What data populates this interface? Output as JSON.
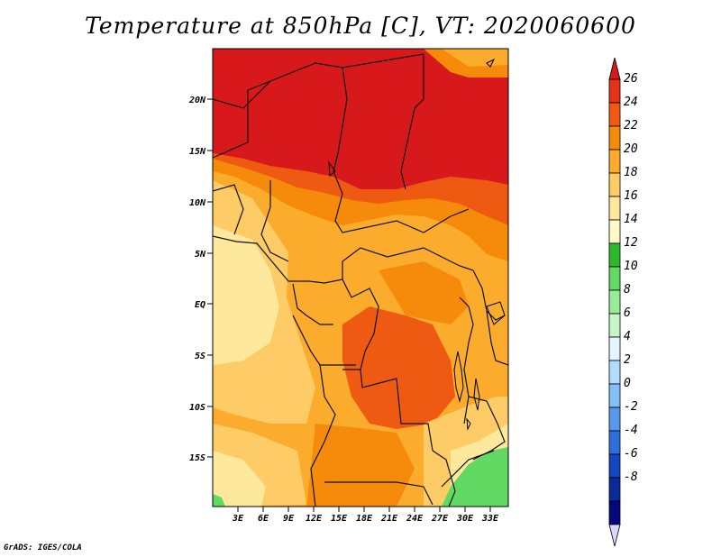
{
  "title": "Temperature at 850hPa [C], VT: 2020060600",
  "credit": "GrADS: IGES/COLA",
  "lat_labels": [
    "20N",
    "15N",
    "10N",
    "5N",
    "EQ",
    "5S",
    "10S",
    "15S"
  ],
  "lon_labels": [
    "3E",
    "6E",
    "9E",
    "12E",
    "15E",
    "18E",
    "21E",
    "24E",
    "27E",
    "30E",
    "33E"
  ],
  "colorbar": {
    "labels": [
      "26",
      "24",
      "22",
      "20",
      "18",
      "16",
      "14",
      "12",
      "10",
      "8",
      "6",
      "4",
      "2",
      "0",
      "-2",
      "-4",
      "-6",
      "-8"
    ],
    "colors": [
      "#d7191c",
      "#e4331a",
      "#ef5a13",
      "#f58a0b",
      "#fbac2c",
      "#fdcc66",
      "#fde89b",
      "#fff9c9",
      "#2eb82e",
      "#62d962",
      "#98ec98",
      "#c6f5c6",
      "#e3f5ff",
      "#b3dbff",
      "#85bff8",
      "#5797ec",
      "#2f6fdc",
      "#1447bf",
      "#0a2a9a",
      "#05087a",
      "#d9d8f8"
    ]
  },
  "map": {
    "lon_range": [
      0.6,
      34.4
    ],
    "lat_range": [
      -20.3,
      24.8
    ]
  }
}
